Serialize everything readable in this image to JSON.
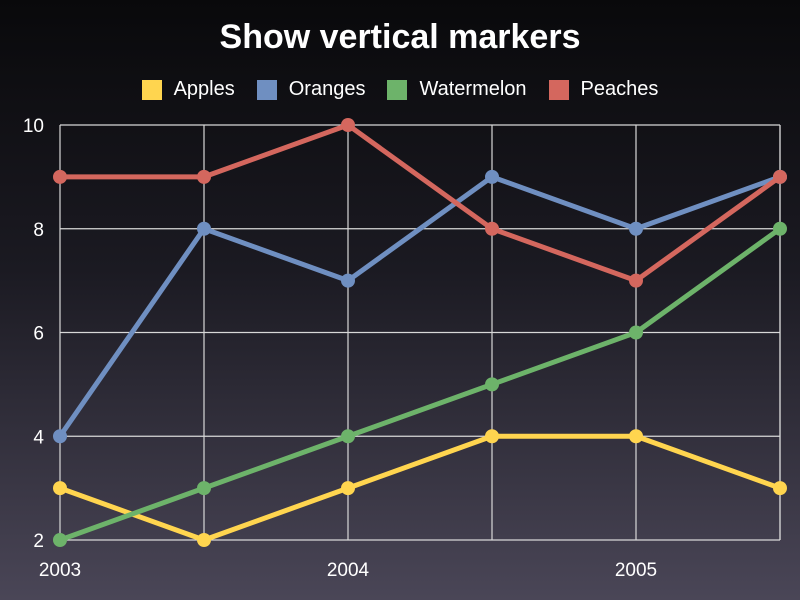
{
  "chart_data": {
    "type": "line",
    "title": "Show vertical markers",
    "x": [
      "2003",
      "",
      "2004",
      "",
      "2005",
      ""
    ],
    "xticks": [
      "2003",
      "2004",
      "2005"
    ],
    "ylim": [
      2,
      10
    ],
    "yticks": [
      2,
      4,
      6,
      8,
      10
    ],
    "grid": true,
    "vertical_markers": true,
    "legend_position": "top",
    "series": [
      {
        "name": "Apples",
        "color": "#ffd54f",
        "values": [
          3,
          2,
          3,
          4,
          4,
          3
        ]
      },
      {
        "name": "Oranges",
        "color": "#6f8fc1",
        "values": [
          4,
          8,
          7,
          9,
          8,
          9
        ]
      },
      {
        "name": "Watermelon",
        "color": "#6db36a",
        "values": [
          2,
          3,
          4,
          5,
          6,
          8
        ]
      },
      {
        "name": "Peaches",
        "color": "#d4675e",
        "values": [
          9,
          9,
          10,
          8,
          7,
          9
        ]
      }
    ]
  }
}
